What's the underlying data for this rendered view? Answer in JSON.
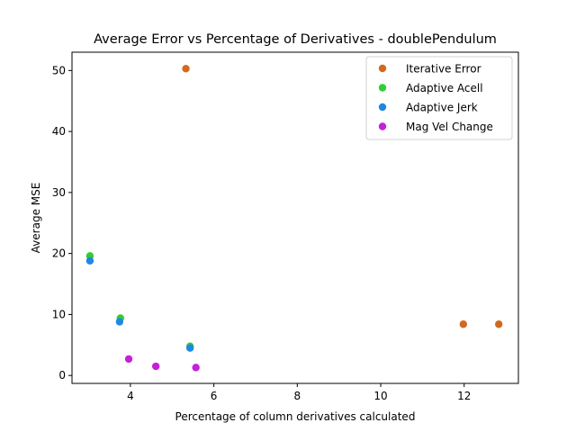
{
  "chart_data": {
    "type": "scatter",
    "title": "Average Error vs Percentage of Derivatives - doublePendulum",
    "xlabel": "Percentage of column derivatives calculated",
    "ylabel": "Average MSE",
    "xlim": [
      2.6,
      13.3
    ],
    "ylim": [
      -1.3,
      53.0
    ],
    "xticks": [
      4,
      6,
      8,
      10,
      12
    ],
    "yticks": [
      0,
      10,
      20,
      30,
      40,
      50
    ],
    "grid": false,
    "legend_position": "top-right",
    "series": [
      {
        "name": "Iterative Error",
        "color": "#d2691e",
        "points": [
          [
            5.33,
            50.3
          ],
          [
            11.98,
            8.4
          ],
          [
            12.83,
            8.4
          ]
        ]
      },
      {
        "name": "Adaptive Acell",
        "color": "#32cd32",
        "points": [
          [
            3.03,
            19.6
          ],
          [
            3.76,
            9.4
          ],
          [
            5.43,
            4.8
          ]
        ]
      },
      {
        "name": "Adaptive Jerk",
        "color": "#1e88e5",
        "points": [
          [
            3.03,
            18.8
          ],
          [
            3.74,
            8.8
          ],
          [
            5.43,
            4.5
          ]
        ]
      },
      {
        "name": "Mag Vel Change",
        "color": "#c71fdb",
        "points": [
          [
            3.96,
            2.7
          ],
          [
            4.61,
            1.5
          ],
          [
            5.57,
            1.3
          ]
        ]
      }
    ]
  }
}
